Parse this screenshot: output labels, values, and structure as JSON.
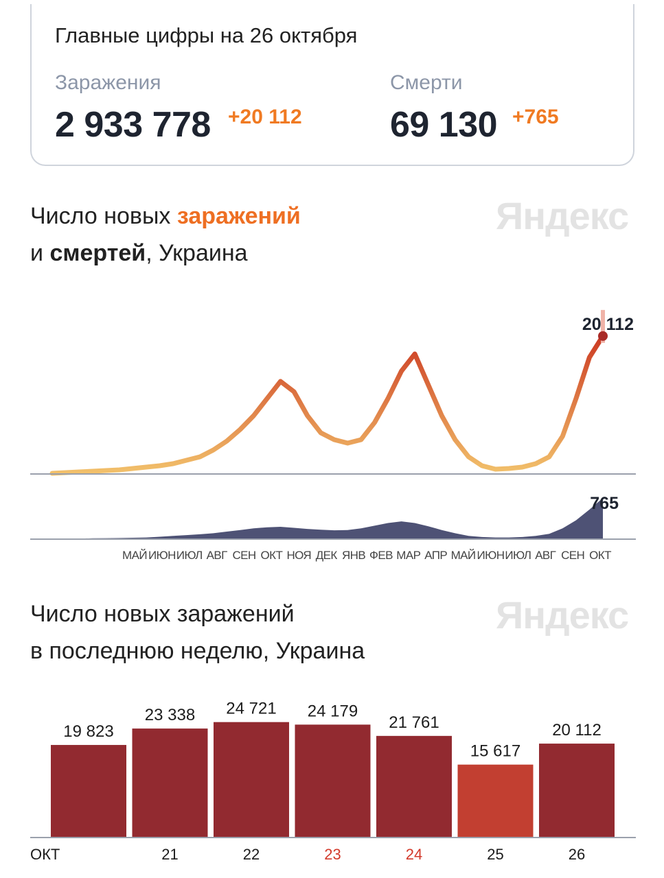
{
  "summary": {
    "title": "Главные цифры на 26 октября",
    "infections_label": "Заражения",
    "infections_total": "2 933 778",
    "infections_delta": "+20 112",
    "deaths_label": "Смерти",
    "deaths_total": "69 130",
    "deaths_delta": "+765"
  },
  "chart1_heading": {
    "line1_prefix": "Число новых ",
    "line1_accent": "заражений",
    "line2_prefix": "и ",
    "line2_bold": "смертей",
    "line2_suffix": ", Украина"
  },
  "chart2_heading": {
    "line1": "Число новых заражений",
    "line2": "в последнюю неделю, Украина"
  },
  "watermark": "Яндекс",
  "colors": {
    "accent": "#ee6f23",
    "infections_low": "#f2c16b",
    "infections_high": "#cc3a22",
    "deaths": "#4e5275",
    "bar": "#922a30",
    "bar_weekend": "#c23f31",
    "weekend_tick": "#d33a2b"
  },
  "chart_data": [
    {
      "type": "area",
      "title": "Число новых заражений и смертей, Украина",
      "x_tick_labels": [
        "МАЙ",
        "ИЮН",
        "ИЮЛ",
        "АВГ",
        "СЕН",
        "ОКТ",
        "НОЯ",
        "ДЕК",
        "ЯНВ",
        "ФЕВ",
        "МАР",
        "АПР",
        "МАЙ",
        "ИЮН",
        "ИЮЛ",
        "АВГ",
        "СЕН",
        "ОКТ"
      ],
      "series": [
        {
          "name": "заражения",
          "values": [
            100,
            200,
            300,
            400,
            500,
            600,
            800,
            1000,
            1200,
            1500,
            2000,
            2500,
            3500,
            4800,
            6500,
            8500,
            11000,
            13500,
            12000,
            8500,
            6000,
            5000,
            4500,
            5000,
            7500,
            11000,
            15000,
            17500,
            13000,
            8500,
            5000,
            2500,
            1200,
            700,
            800,
            1000,
            1500,
            2500,
            5500,
            11000,
            17000,
            20112
          ],
          "last_value_label": "20 112"
        },
        {
          "name": "смерти",
          "values": [
            4,
            6,
            10,
            15,
            18,
            20,
            25,
            30,
            45,
            60,
            75,
            90,
            110,
            140,
            170,
            200,
            220,
            230,
            210,
            190,
            175,
            165,
            170,
            200,
            250,
            300,
            330,
            300,
            240,
            170,
            110,
            60,
            40,
            30,
            30,
            40,
            60,
            100,
            200,
            350,
            550,
            765
          ],
          "last_value_label": "765"
        }
      ],
      "ylim": [
        0,
        22000
      ]
    },
    {
      "type": "bar",
      "title": "Число новых заражений в последнюю неделю, Украина",
      "categories": [
        "ОКТ",
        "21",
        "22",
        "23",
        "24",
        "25",
        "26"
      ],
      "values": [
        19823,
        23338,
        24721,
        24179,
        21761,
        15617,
        20112
      ],
      "value_labels": [
        "19 823",
        "23 338",
        "24 721",
        "24 179",
        "21 761",
        "15 617",
        "20 112"
      ],
      "weekend_categories": [
        "23",
        "24"
      ],
      "highlighted_bar": "25",
      "ylim": [
        0,
        28000
      ]
    }
  ]
}
